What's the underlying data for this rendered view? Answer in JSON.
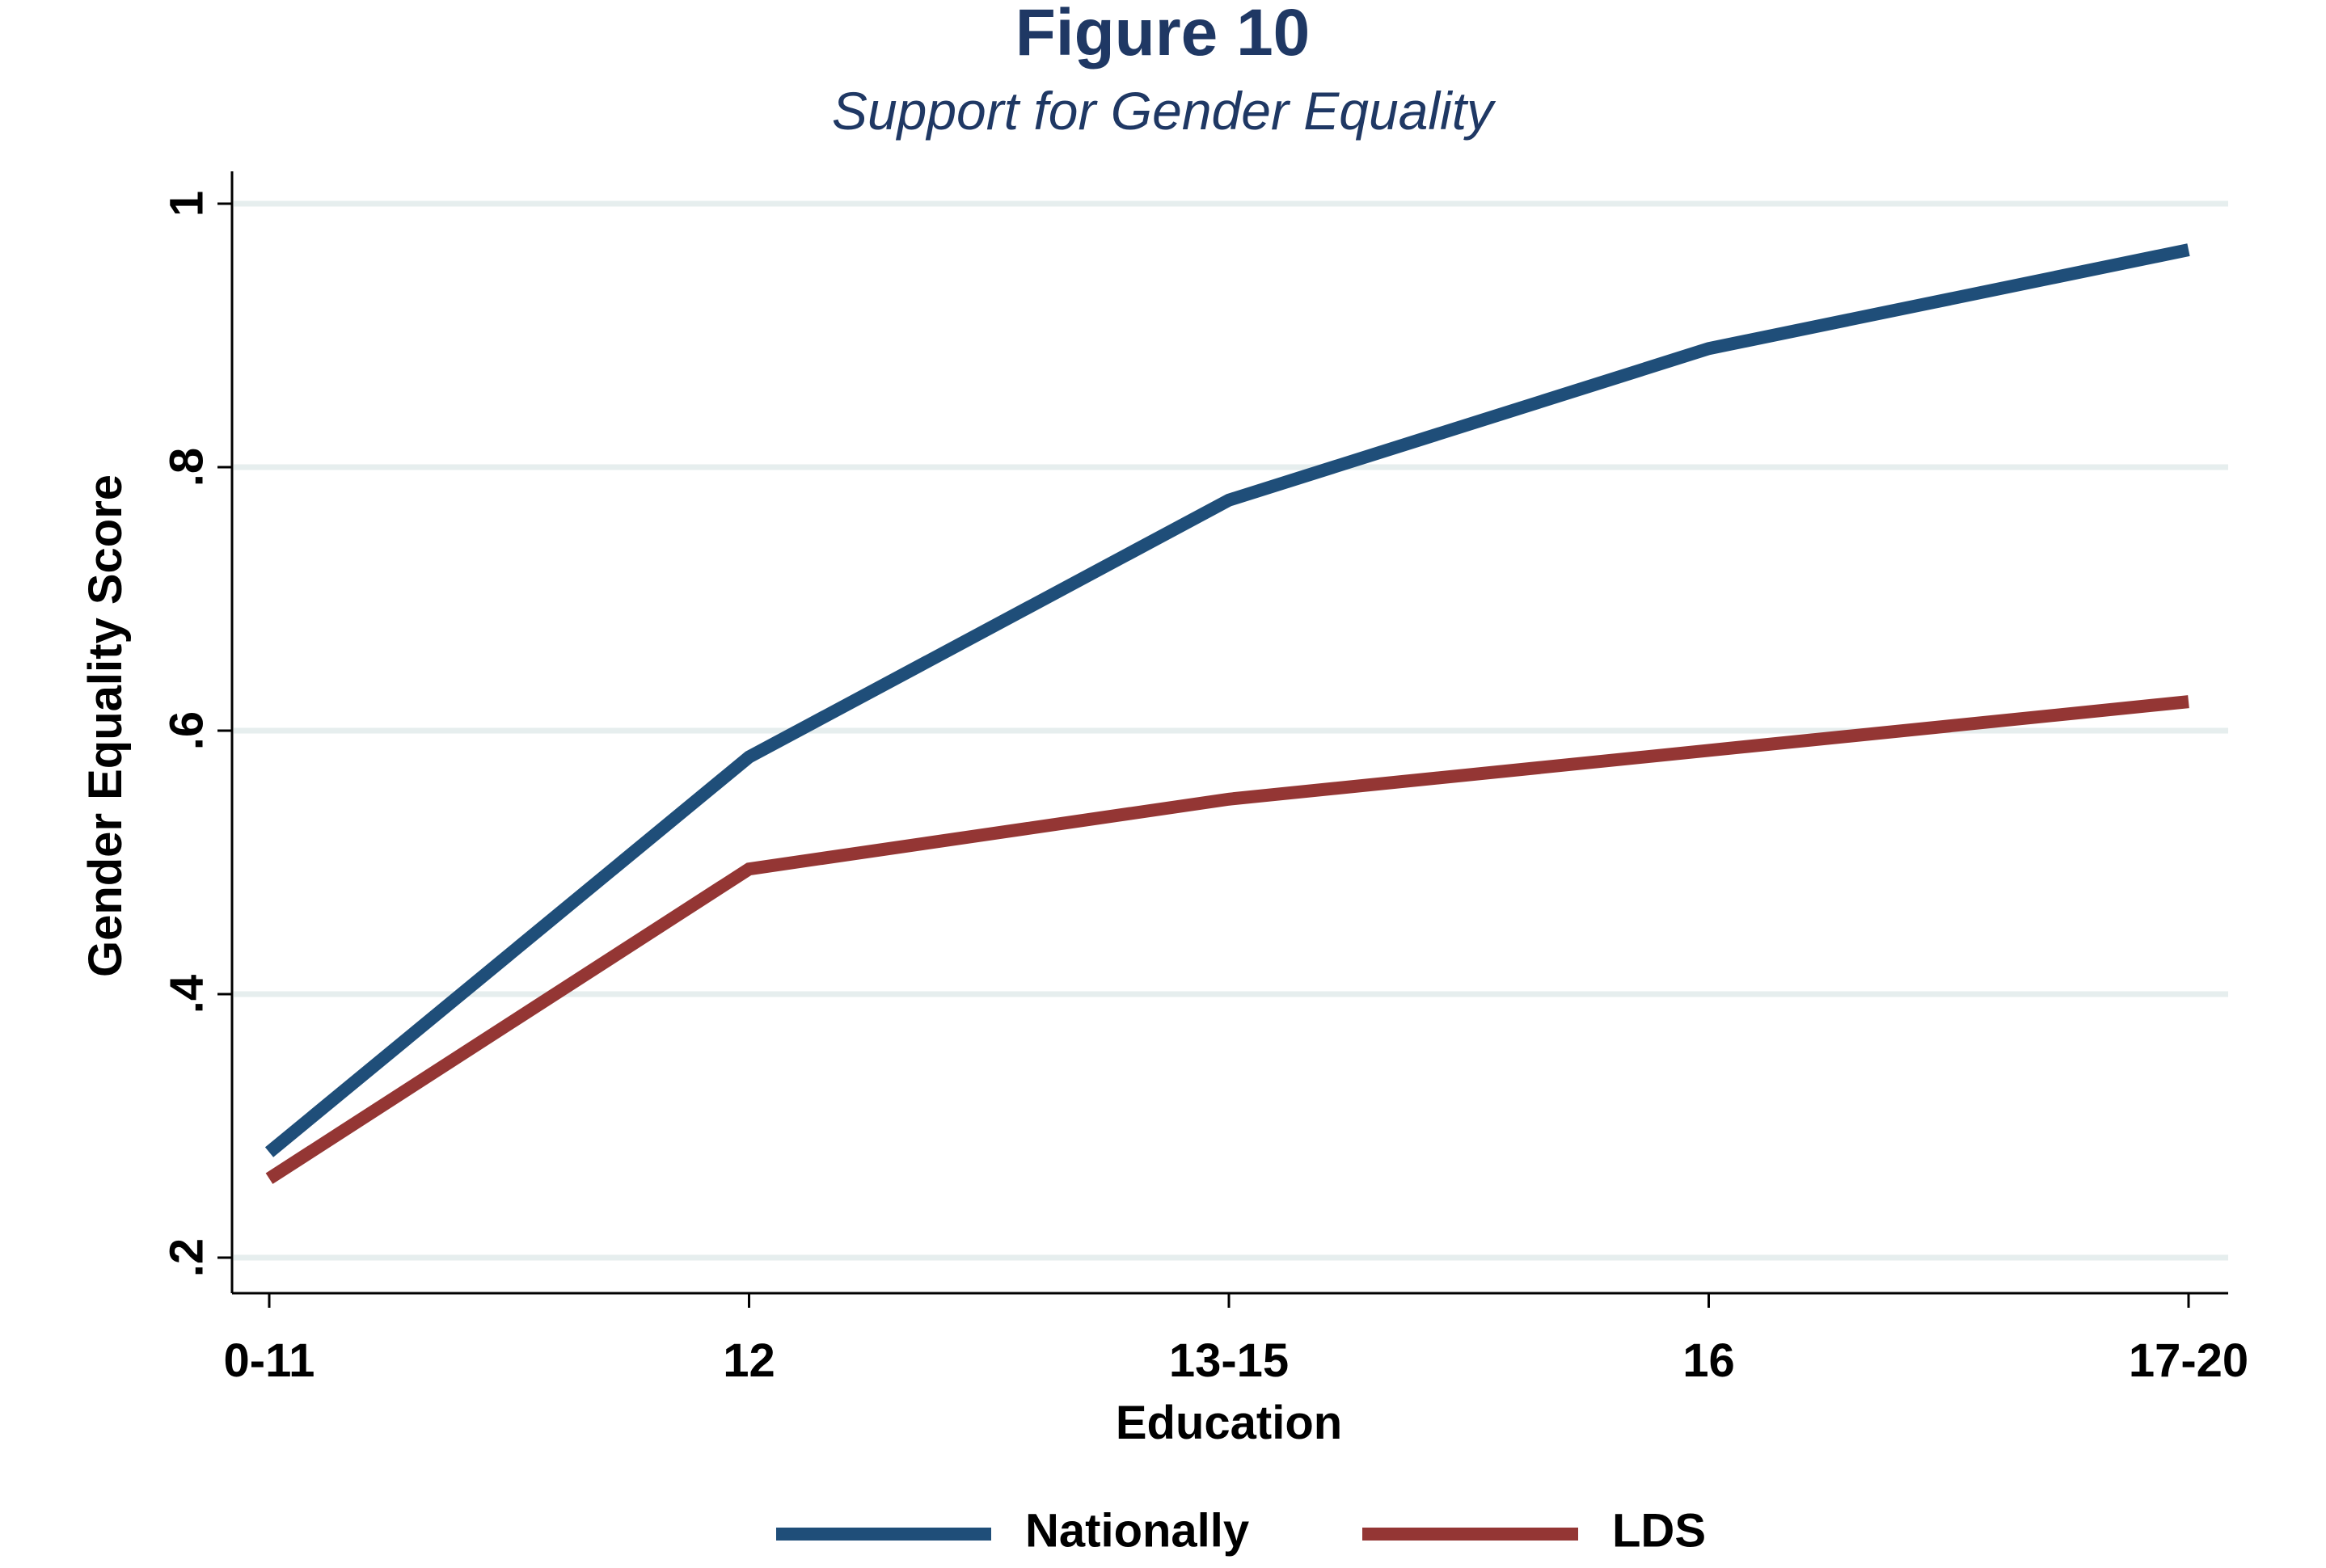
{
  "chart_data": {
    "type": "line",
    "title": "Figure 10",
    "subtitle": "Support for Gender Equality",
    "xlabel": "Education",
    "ylabel": "Gender Equality Score",
    "categories": [
      "0-11",
      "12",
      "13-15",
      "16",
      "17-20"
    ],
    "ylim": [
      0.2,
      1.0
    ],
    "yticks": [
      0.2,
      0.4,
      0.6,
      0.8,
      1.0
    ],
    "ytick_labels": [
      ".2",
      ".4",
      ".6",
      ".8",
      "1"
    ],
    "grid": true,
    "legend_position": "bottom",
    "series": [
      {
        "name": "Nationally",
        "color": "#1f4e79",
        "values": [
          0.28,
          0.58,
          0.775,
          0.89,
          0.965
        ]
      },
      {
        "name": "LDS",
        "color": "#943634",
        "values": [
          0.26,
          0.495,
          0.548,
          0.585,
          0.622
        ]
      }
    ]
  }
}
